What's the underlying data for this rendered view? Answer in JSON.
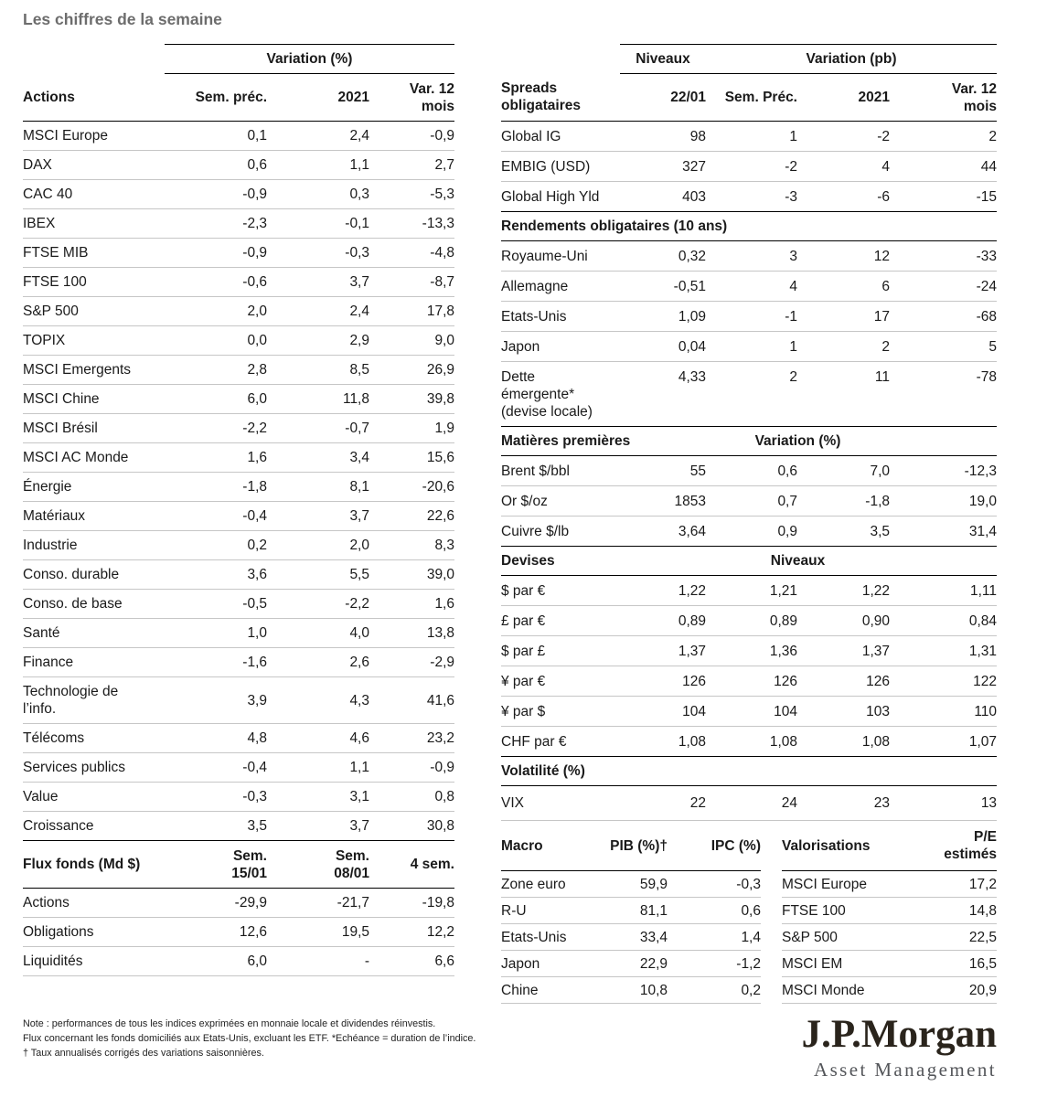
{
  "page_title": "Les chiffres de la semaine",
  "colors": {
    "logo": "#2a241c",
    "title_gray": "#6d6d6d",
    "rule_black": "#000000",
    "rule_gray": "#c6c6c6"
  },
  "actions_table": {
    "span_header": "Variation (%)",
    "headers": {
      "label": "Actions",
      "col1": "Sem. préc.",
      "col2": "2021",
      "col3": "Var. 12\nmois"
    },
    "rows": [
      {
        "label": "MSCI Europe",
        "c1": "0,1",
        "c2": "2,4",
        "c3": "-0,9"
      },
      {
        "label": "DAX",
        "c1": "0,6",
        "c2": "1,1",
        "c3": "2,7"
      },
      {
        "label": "CAC 40",
        "c1": "-0,9",
        "c2": "0,3",
        "c3": "-5,3"
      },
      {
        "label": "IBEX",
        "c1": "-2,3",
        "c2": "-0,1",
        "c3": "-13,3"
      },
      {
        "label": "FTSE MIB",
        "c1": "-0,9",
        "c2": "-0,3",
        "c3": "-4,8"
      },
      {
        "label": "FTSE 100",
        "c1": "-0,6",
        "c2": "3,7",
        "c3": "-8,7"
      },
      {
        "label": "S&P 500",
        "c1": "2,0",
        "c2": "2,4",
        "c3": "17,8"
      },
      {
        "label": "TOPIX",
        "c1": "0,0",
        "c2": "2,9",
        "c3": "9,0"
      },
      {
        "label": "MSCI Emergents",
        "c1": "2,8",
        "c2": "8,5",
        "c3": "26,9"
      },
      {
        "label": "MSCI Chine",
        "c1": "6,0",
        "c2": "11,8",
        "c3": "39,8"
      },
      {
        "label": "MSCI Brésil",
        "c1": "-2,2",
        "c2": "-0,7",
        "c3": "1,9"
      },
      {
        "label": "MSCI AC Monde",
        "c1": "1,6",
        "c2": "3,4",
        "c3": "15,6"
      },
      {
        "label": "Énergie",
        "indent": true,
        "c1": "-1,8",
        "c2": "8,1",
        "c3": "-20,6"
      },
      {
        "label": "Matériaux",
        "indent": true,
        "c1": "-0,4",
        "c2": "3,7",
        "c3": "22,6"
      },
      {
        "label": "Industrie",
        "indent": true,
        "c1": "0,2",
        "c2": "2,0",
        "c3": "8,3"
      },
      {
        "label": "Conso. durable",
        "indent": true,
        "c1": "3,6",
        "c2": "5,5",
        "c3": "39,0"
      },
      {
        "label": "Conso. de base",
        "indent": true,
        "c1": "-0,5",
        "c2": "-2,2",
        "c3": "1,6"
      },
      {
        "label": "Santé",
        "indent": true,
        "c1": "1,0",
        "c2": "4,0",
        "c3": "13,8"
      },
      {
        "label": "Finance",
        "indent": true,
        "c1": "-1,6",
        "c2": "2,6",
        "c3": "-2,9"
      },
      {
        "label": "Technologie de\nl’info.",
        "indent": true,
        "c1": "3,9",
        "c2": "4,3",
        "c3": "41,6"
      },
      {
        "label": "Télécoms",
        "indent": true,
        "c1": "4,8",
        "c2": "4,6",
        "c3": "23,2"
      },
      {
        "label": "Services publics",
        "indent": true,
        "c1": "-0,4",
        "c2": "1,1",
        "c3": "-0,9"
      },
      {
        "label": "Value",
        "c1": "-0,3",
        "c2": "3,1",
        "c3": "0,8"
      },
      {
        "label": "Croissance",
        "c1": "3,5",
        "c2": "3,7",
        "c3": "30,8"
      }
    ]
  },
  "flux_table": {
    "headers": {
      "label": "Flux fonds (Md $)",
      "col1": "Sem.\n15/01",
      "col2": "Sem.\n08/01",
      "col3": "4 sem."
    },
    "rows": [
      {
        "label": "Actions",
        "c1": "-29,9",
        "c2": "-21,7",
        "c3": "-19,8"
      },
      {
        "label": "Obligations",
        "c1": "12,6",
        "c2": "19,5",
        "c3": "12,2"
      },
      {
        "label": "Liquidités",
        "c1": "6,0",
        "c2": "-",
        "c3": "6,6"
      }
    ]
  },
  "notes": [
    "Note : performances de tous les indices exprimées en monnaie locale et dividendes réinvestis.",
    "Flux concernant les fonds domiciliés aux Etats-Unis, excluant les ETF. *Echéance = duration de l’indice.",
    "† Taux annualisés corrigés des variations saisonnières."
  ],
  "spreads_table": {
    "span_headers": {
      "niveaux": "Niveaux",
      "variation": "Variation (pb)"
    },
    "headers": {
      "label": "Spreads\nobligataires",
      "col1": "22/01",
      "col2": "Sem. Préc.",
      "col3": "2021",
      "col4": "Var. 12\nmois"
    },
    "rows": [
      {
        "label": "Global IG",
        "c1": "98",
        "c2": "1",
        "c3": "-2",
        "c4": "2"
      },
      {
        "label": "EMBIG (USD)",
        "c1": "327",
        "c2": "-2",
        "c3": "4",
        "c4": "44"
      },
      {
        "label": "Global High Yld",
        "c1": "403",
        "c2": "-3",
        "c3": "-6",
        "c4": "-15"
      }
    ]
  },
  "rendements_table": {
    "section_title": "Rendements obligataires (10 ans)",
    "rows": [
      {
        "label": "Royaume-Uni",
        "c1": "0,32",
        "c2": "3",
        "c3": "12",
        "c4": "-33"
      },
      {
        "label": "Allemagne",
        "c1": "-0,51",
        "c2": "4",
        "c3": "6",
        "c4": "-24"
      },
      {
        "label": "Etats-Unis",
        "c1": "1,09",
        "c2": "-1",
        "c3": "17",
        "c4": "-68"
      },
      {
        "label": "Japon",
        "c1": "0,04",
        "c2": "1",
        "c3": "2",
        "c4": "5"
      },
      {
        "label": "Dette\némergente*\n(devise locale)",
        "c1": "4,33",
        "c2": "2",
        "c3": "11",
        "c4": "-78"
      }
    ]
  },
  "matieres_table": {
    "section_title": "Matières premières",
    "span_header": "Variation (%)",
    "rows": [
      {
        "label": "Brent $/bbl",
        "c1": "55",
        "c2": "0,6",
        "c3": "7,0",
        "c4": "-12,3"
      },
      {
        "label": "Or $/oz",
        "c1": "1853",
        "c2": "0,7",
        "c3": "-1,8",
        "c4": "19,0"
      },
      {
        "label": "Cuivre $/lb",
        "c1": "3,64",
        "c2": "0,9",
        "c3": "3,5",
        "c4": "31,4"
      }
    ]
  },
  "devises_table": {
    "section_title": "Devises",
    "span_header": "Niveaux",
    "rows": [
      {
        "label": "$ par €",
        "c1": "1,22",
        "c2": "1,21",
        "c3": "1,22",
        "c4": "1,11"
      },
      {
        "label": "£ par €",
        "c1": "0,89",
        "c2": "0,89",
        "c3": "0,90",
        "c4": "0,84"
      },
      {
        "label": "$ par £",
        "c1": "1,37",
        "c2": "1,36",
        "c3": "1,37",
        "c4": "1,31"
      },
      {
        "label": "¥ par €",
        "c1": "126",
        "c2": "126",
        "c3": "126",
        "c4": "122"
      },
      {
        "label": "¥ par $",
        "c1": "104",
        "c2": "104",
        "c3": "103",
        "c4": "110"
      },
      {
        "label": "CHF par €",
        "c1": "1,08",
        "c2": "1,08",
        "c3": "1,08",
        "c4": "1,07"
      }
    ]
  },
  "volatilite_table": {
    "section_title": "Volatilité (%)",
    "rows": [
      {
        "label": "VIX",
        "c1": "22",
        "c2": "24",
        "c3": "23",
        "c4": "13"
      }
    ]
  },
  "macro_table": {
    "headers": {
      "label": "Macro",
      "col1": "PIB (%)†",
      "col2": "IPC (%)"
    },
    "rows": [
      {
        "label": "Zone euro",
        "c1": "59,9",
        "c2": "-0,3"
      },
      {
        "label": "R-U",
        "c1": "81,1",
        "c2": "0,6"
      },
      {
        "label": "Etats-Unis",
        "c1": "33,4",
        "c2": "1,4"
      },
      {
        "label": "Japon",
        "c1": "22,9",
        "c2": "-1,2"
      },
      {
        "label": "Chine",
        "c1": "10,8",
        "c2": "0,2"
      }
    ]
  },
  "valorisations_table": {
    "headers": {
      "label": "Valorisations",
      "col1": "P/E\nestimés"
    },
    "rows": [
      {
        "label": "MSCI Europe",
        "c1": "17,2"
      },
      {
        "label": "FTSE 100",
        "c1": "14,8"
      },
      {
        "label": "S&P 500",
        "c1": "22,5"
      },
      {
        "label": "MSCI EM",
        "c1": "16,5"
      },
      {
        "label": "MSCI Monde",
        "c1": "20,9"
      }
    ]
  },
  "logo": {
    "brand": "J.P.Morgan",
    "division": "Asset Management"
  }
}
